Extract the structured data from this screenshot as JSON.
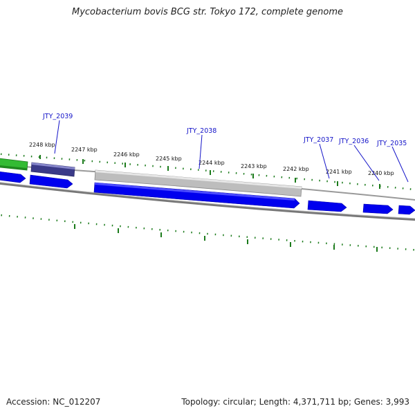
{
  "title": "Mycobacterium bovis BCG str. Tokyo 172, complete genome",
  "footer": {
    "accession": "Accession: NC_012207",
    "summary": "Topology: circular; Length: 4,371,711 bp; Genes: 3,993"
  },
  "ticks": [
    {
      "label": "2248 kbp"
    },
    {
      "label": "2247 kbp"
    },
    {
      "label": "2246 kbp"
    },
    {
      "label": "2245 kbp"
    },
    {
      "label": "2244 kbp"
    },
    {
      "label": "2243 kbp"
    },
    {
      "label": "2242 kbp"
    },
    {
      "label": "2241 kbp"
    },
    {
      "label": "2240 kbp"
    }
  ],
  "genes": [
    {
      "label": "JTY_2039"
    },
    {
      "label": "JTY_2038"
    },
    {
      "label": "JTY_2037"
    },
    {
      "label": "JTY_2036"
    },
    {
      "label": "JTY_2035"
    }
  ],
  "colors": {
    "cds_blue": "#0000ee",
    "rrna_green": "#33bb33",
    "pseudo_indigo": "#3a3a88",
    "gray_feature": "#bbbbbb",
    "tick_green": "#1a7a1a",
    "backbone_gray": "#888888",
    "label_blue": "#1212c8"
  }
}
